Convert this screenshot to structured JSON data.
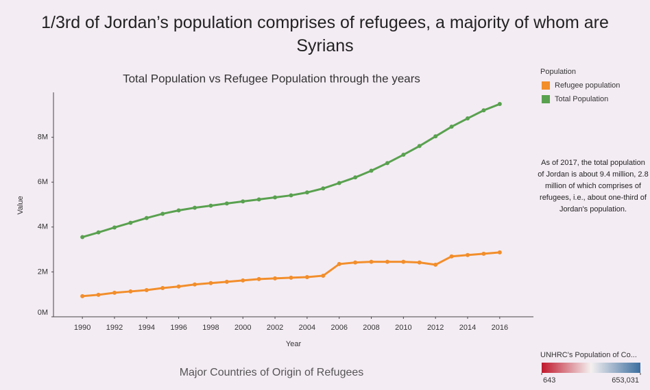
{
  "chart_data": {
    "type": "line",
    "title": "Total Population vs Refugee Population through the years",
    "x_label": "Year",
    "y_label": "Value",
    "x": [
      1990,
      1991,
      1992,
      1993,
      1994,
      1995,
      1996,
      1997,
      1998,
      1999,
      2000,
      2001,
      2002,
      2003,
      2004,
      2005,
      2006,
      2007,
      2008,
      2009,
      2010,
      2011,
      2012,
      2013,
      2014,
      2015,
      2016
    ],
    "series": [
      {
        "name": "Refugee population",
        "color": "#f28e2b",
        "values": [
          920000,
          980000,
          1070000,
          1130000,
          1190000,
          1280000,
          1350000,
          1440000,
          1500000,
          1560000,
          1620000,
          1680000,
          1710000,
          1740000,
          1770000,
          1830000,
          2350000,
          2420000,
          2450000,
          2450000,
          2450000,
          2420000,
          2320000,
          2690000,
          2750000,
          2810000,
          2870000
        ]
      },
      {
        "name": "Total Population",
        "color": "#59a14f",
        "values": [
          3550000,
          3760000,
          3980000,
          4190000,
          4400000,
          4590000,
          4740000,
          4860000,
          4950000,
          5050000,
          5140000,
          5230000,
          5320000,
          5410000,
          5540000,
          5720000,
          5960000,
          6210000,
          6510000,
          6850000,
          7220000,
          7610000,
          8040000,
          8470000,
          8840000,
          9200000,
          9480000
        ]
      }
    ],
    "legend_title": "Population",
    "xlim": [
      1988.2,
      2018.1
    ],
    "xticks": [
      1990,
      1992,
      1994,
      1996,
      1998,
      2000,
      2002,
      2004,
      2006,
      2008,
      2010,
      2012,
      2014,
      2016
    ],
    "ylim": [
      0,
      10000000
    ],
    "yticks": [
      {
        "value": 0,
        "label": "0M"
      },
      {
        "value": 2000000,
        "label": "2M"
      },
      {
        "value": 4000000,
        "label": "4M"
      },
      {
        "value": 6000000,
        "label": "6M"
      },
      {
        "value": 8000000,
        "label": "8M"
      }
    ]
  },
  "dashboard": {
    "title": "1/3rd of Jordan’s population comprises of refugees, a majority of whom are Syrians",
    "annotation": "As of 2017, the total population of Jordan is about 9.4 million, 2.8 million of which comprises of refugees, i.e., about one-third of Jordan's population.",
    "map_title": "Major Countries of Origin of Refugees",
    "color_legend": {
      "title": "UNHRC's Population of Co...",
      "colors": [
        "#c0182c",
        "#f4f0f0",
        "#3c6e9f"
      ],
      "ticks": [
        643,
        {
          "value": 653031,
          "label": "653,031"
        }
      ]
    }
  }
}
